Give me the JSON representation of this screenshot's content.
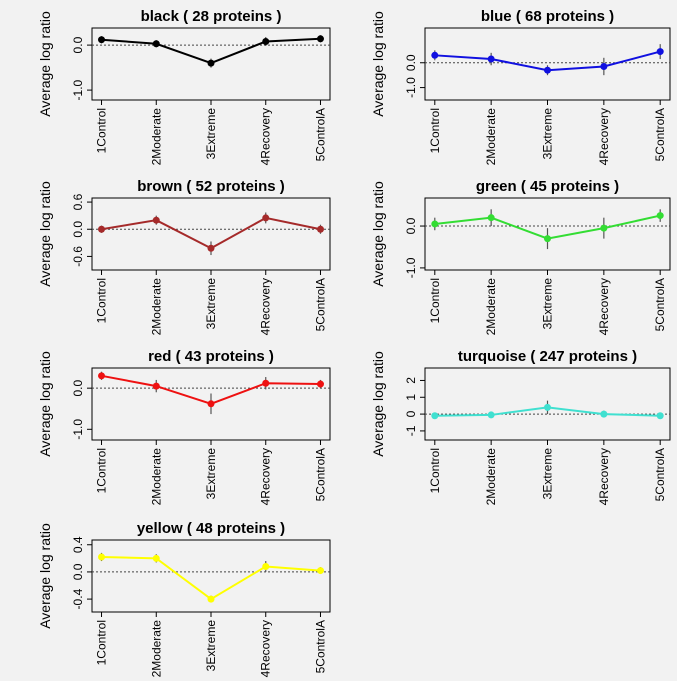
{
  "chart_data": [
    {
      "type": "line",
      "title": "black ( 28 proteins )",
      "ylabel": "Average log ratio",
      "categories": [
        "1Control",
        "2Moderate",
        "3Extreme",
        "4Recovery",
        "5ControlA"
      ],
      "series": [
        {
          "name": "black",
          "color": "#000000",
          "values": [
            0.12,
            0.03,
            -0.4,
            0.08,
            0.14
          ],
          "errors": [
            0.08,
            0.08,
            0.1,
            0.1,
            0.08
          ]
        }
      ],
      "ylim": [
        -1.22,
        0.38
      ],
      "yticks": [
        {
          "value": -1,
          "label": "-1.0"
        },
        {
          "value": 0,
          "label": "0.0"
        }
      ],
      "reference_line": 0
    },
    {
      "type": "line",
      "title": "blue ( 68 proteins )",
      "ylabel": "Average log ratio",
      "categories": [
        "1Control",
        "2Moderate",
        "3Extreme",
        "4Recovery",
        "5ControlA"
      ],
      "series": [
        {
          "name": "blue",
          "color": "#1010e0",
          "values": [
            0.3,
            0.15,
            -0.3,
            -0.15,
            0.45
          ],
          "errors": [
            0.2,
            0.25,
            0.2,
            0.35,
            0.3
          ]
        }
      ],
      "ylim": [
        -1.5,
        1.4
      ],
      "yticks": [
        {
          "value": -1,
          "label": "-1.0"
        },
        {
          "value": 0,
          "label": "0.0"
        }
      ],
      "reference_line": 0
    },
    {
      "type": "line",
      "title": "brown ( 52 proteins )",
      "ylabel": "Average log ratio",
      "categories": [
        "1Control",
        "2Moderate",
        "3Extreme",
        "4Recovery",
        "5ControlA"
      ],
      "series": [
        {
          "name": "brown",
          "color": "#a52a2a",
          "values": [
            0.0,
            0.2,
            -0.42,
            0.25,
            0.0
          ],
          "errors": [
            0.08,
            0.1,
            0.15,
            0.12,
            0.1
          ]
        }
      ],
      "ylim": [
        -0.9,
        0.69
      ],
      "yticks": [
        {
          "value": -0.6,
          "label": "-0.6"
        },
        {
          "value": 0,
          "label": "0.0"
        },
        {
          "value": 0.6,
          "label": "0.6"
        }
      ],
      "reference_line": 0
    },
    {
      "type": "line",
      "title": "green ( 45 proteins )",
      "ylabel": "Average log ratio",
      "categories": [
        "1Control",
        "2Moderate",
        "3Extreme",
        "4Recovery",
        "5ControlA"
      ],
      "series": [
        {
          "name": "green",
          "color": "#33dd33",
          "values": [
            0.05,
            0.2,
            -0.3,
            -0.05,
            0.25
          ],
          "errors": [
            0.15,
            0.2,
            0.25,
            0.25,
            0.15
          ]
        }
      ],
      "ylim": [
        -1.05,
        0.67
      ],
      "yticks": [
        {
          "value": -1,
          "label": "-1.0"
        },
        {
          "value": 0,
          "label": "0.0"
        }
      ],
      "reference_line": 0
    },
    {
      "type": "line",
      "title": "red ( 43 proteins )",
      "ylabel": "Average log ratio",
      "categories": [
        "1Control",
        "2Moderate",
        "3Extreme",
        "4Recovery",
        "5ControlA"
      ],
      "series": [
        {
          "name": "red",
          "color": "#ee1111",
          "values": [
            0.3,
            0.05,
            -0.38,
            0.12,
            0.1
          ],
          "errors": [
            0.1,
            0.15,
            0.25,
            0.15,
            0.1
          ]
        }
      ],
      "ylim": [
        -1.26,
        0.49
      ],
      "yticks": [
        {
          "value": -1,
          "label": "-1.0"
        },
        {
          "value": 0,
          "label": "0.0"
        }
      ],
      "reference_line": 0
    },
    {
      "type": "line",
      "title": "turquoise ( 247 proteins )",
      "ylabel": "Average log ratio",
      "categories": [
        "1Control",
        "2Moderate",
        "3Extreme",
        "4Recovery",
        "5ControlA"
      ],
      "series": [
        {
          "name": "turquoise",
          "color": "#40e0d0",
          "values": [
            -0.1,
            -0.05,
            0.4,
            0.0,
            -0.1
          ],
          "errors": [
            0.1,
            0.1,
            0.4,
            0.2,
            0.1
          ]
        }
      ],
      "ylim": [
        -1.54,
        2.74
      ],
      "yticks": [
        -1,
        0,
        1,
        2
      ],
      "reference_line": 0
    },
    {
      "type": "line",
      "title": "yellow ( 48 proteins )",
      "ylabel": "Average log ratio",
      "categories": [
        "1Control",
        "2Moderate",
        "3Extreme",
        "4Recovery",
        "5ControlA"
      ],
      "series": [
        {
          "name": "yellow",
          "color": "#ffff00",
          "values": [
            0.22,
            0.2,
            -0.4,
            0.08,
            0.02
          ],
          "errors": [
            0.06,
            0.06,
            0.05,
            0.08,
            0.05
          ]
        }
      ],
      "ylim": [
        -0.59,
        0.47
      ],
      "yticks": [
        {
          "value": -0.4,
          "label": "-0.4"
        },
        {
          "value": 0,
          "label": "0.0"
        },
        {
          "value": 0.4,
          "label": "0.4"
        }
      ],
      "reference_line": 0
    }
  ]
}
